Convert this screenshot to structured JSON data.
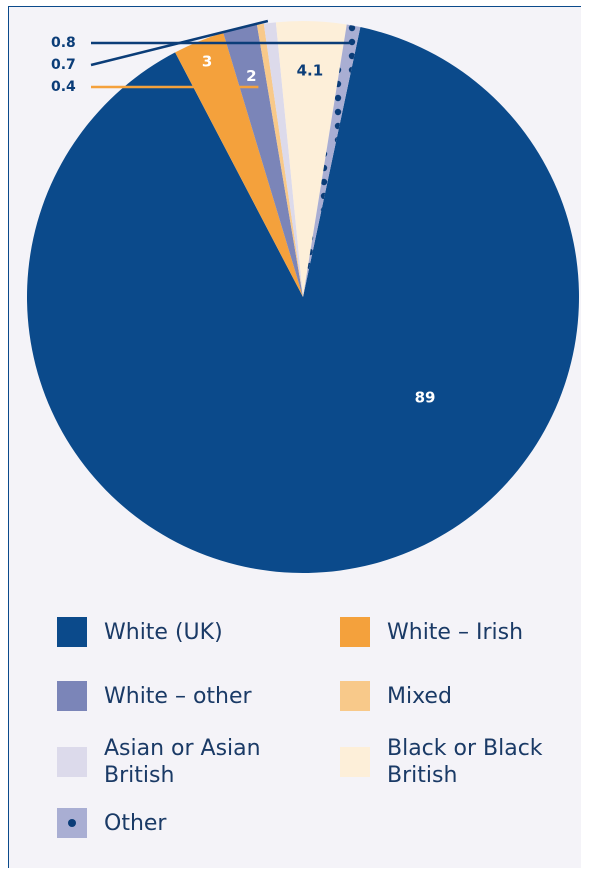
{
  "chart_data": {
    "type": "pie",
    "categories": [
      "White (UK)",
      "White – Irish",
      "White – other",
      "Mixed",
      "Asian or Asian British",
      "Black or Black British",
      "Other"
    ],
    "values": [
      89,
      3,
      2,
      0.4,
      0.7,
      4.1,
      0.8
    ],
    "value_labels": [
      "89",
      "3",
      "2",
      "0.4",
      "0.7",
      "4.1",
      "0.8"
    ],
    "colors": [
      "#0b4a8b",
      "#f4a13c",
      "#7b85b8",
      "#f8c98a",
      "#dcdaeb",
      "#fdefd9",
      "#a9aed3"
    ],
    "legend_position": "bottom",
    "title": ""
  },
  "legend": {
    "items": [
      {
        "label": "White (UK)",
        "color": "#0b4a8b"
      },
      {
        "label": "White – Irish",
        "color": "#f4a13c"
      },
      {
        "label": "White – other",
        "color": "#7b85b8"
      },
      {
        "label": "Mixed",
        "color": "#f8c98a"
      },
      {
        "label": "Asian or Asian British",
        "color": "#dcdaeb"
      },
      {
        "label": "Black or Black British",
        "color": "#fdefd9"
      },
      {
        "label": "Other",
        "color": "#a9aed3"
      }
    ]
  }
}
